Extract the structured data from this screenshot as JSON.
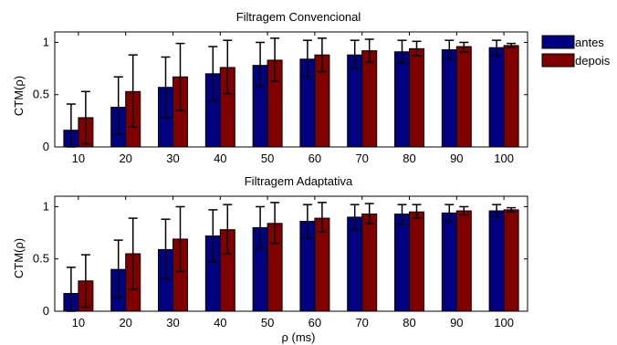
{
  "chart_data": [
    {
      "type": "bar",
      "title": "Filtragem Convencional",
      "xlabel": "",
      "ylabel": "CTM(ρ)",
      "ylim": [
        0,
        1.1
      ],
      "yticks": [
        "0",
        "0.5",
        "1"
      ],
      "categories": [
        "10",
        "20",
        "30",
        "40",
        "50",
        "60",
        "70",
        "80",
        "90",
        "100"
      ],
      "grid": false,
      "series": [
        {
          "name": "antes",
          "color": "#000080",
          "values": [
            0.16,
            0.38,
            0.57,
            0.7,
            0.78,
            0.84,
            0.88,
            0.91,
            0.93,
            0.95
          ],
          "error_low": [
            0.0,
            0.12,
            0.28,
            0.44,
            0.58,
            0.67,
            0.75,
            0.8,
            0.84,
            0.87
          ],
          "error_high": [
            0.41,
            0.67,
            0.86,
            0.96,
            1.0,
            1.02,
            1.02,
            1.02,
            1.02,
            1.02
          ]
        },
        {
          "name": "depois",
          "color": "#800000",
          "values": [
            0.28,
            0.53,
            0.67,
            0.76,
            0.83,
            0.88,
            0.92,
            0.94,
            0.96,
            0.97
          ],
          "error_low": [
            0.03,
            0.19,
            0.35,
            0.51,
            0.63,
            0.72,
            0.81,
            0.87,
            0.91,
            0.95
          ],
          "error_high": [
            0.53,
            0.88,
            0.99,
            1.02,
            1.04,
            1.04,
            1.03,
            1.01,
            1.0,
            0.99
          ]
        }
      ]
    },
    {
      "type": "bar",
      "title": "Filtragem Adaptativa",
      "xlabel": "ρ (ms)",
      "ylabel": "CTM(ρ)",
      "ylim": [
        0,
        1.1
      ],
      "yticks": [
        "0",
        "0.5",
        "1"
      ],
      "categories": [
        "10",
        "20",
        "30",
        "40",
        "50",
        "60",
        "70",
        "80",
        "90",
        "100"
      ],
      "grid": false,
      "series": [
        {
          "name": "antes",
          "color": "#000080",
          "values": [
            0.17,
            0.4,
            0.59,
            0.72,
            0.8,
            0.86,
            0.9,
            0.93,
            0.94,
            0.96
          ],
          "error_low": [
            0.0,
            0.13,
            0.31,
            0.47,
            0.6,
            0.7,
            0.78,
            0.83,
            0.86,
            0.9
          ],
          "error_high": [
            0.42,
            0.68,
            0.88,
            0.97,
            1.0,
            1.02,
            1.02,
            1.02,
            1.02,
            1.02
          ]
        },
        {
          "name": "depois",
          "color": "#800000",
          "values": [
            0.29,
            0.55,
            0.69,
            0.78,
            0.84,
            0.89,
            0.93,
            0.95,
            0.96,
            0.97
          ],
          "error_low": [
            0.04,
            0.21,
            0.38,
            0.55,
            0.65,
            0.76,
            0.84,
            0.89,
            0.92,
            0.95
          ],
          "error_high": [
            0.54,
            0.89,
            1.0,
            1.02,
            1.04,
            1.04,
            1.03,
            1.02,
            1.0,
            0.99
          ]
        }
      ]
    }
  ],
  "legend": {
    "placement": "right",
    "entries": [
      {
        "label": "antes",
        "color": "#000080"
      },
      {
        "label": "depois",
        "color": "#800000"
      }
    ]
  }
}
